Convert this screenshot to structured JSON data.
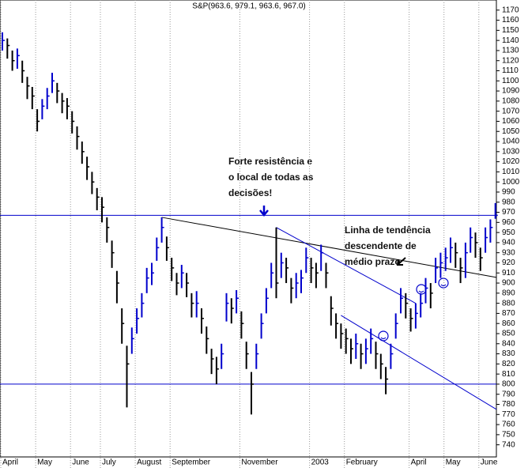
{
  "chart_data": {
    "type": "ohlc",
    "title": "S&P(963.6, 979.1, 963.6, 967.0)",
    "categories": [
      "April",
      null,
      null,
      null,
      null,
      null,
      null,
      "May",
      null,
      null,
      null,
      null,
      null,
      null,
      "June",
      null,
      null,
      null,
      null,
      null,
      "July",
      null,
      null,
      null,
      null,
      null,
      null,
      "August",
      null,
      null,
      null,
      null,
      null,
      null,
      "September",
      null,
      null,
      null,
      null,
      null,
      null,
      null,
      null,
      null,
      null,
      null,
      null,
      null,
      "November",
      null,
      null,
      null,
      null,
      null,
      null,
      null,
      null,
      null,
      null,
      null,
      null,
      null,
      "2003",
      null,
      null,
      null,
      null,
      null,
      null,
      "February",
      null,
      null,
      null,
      null,
      null,
      null,
      null,
      null,
      null,
      null,
      null,
      null,
      "April",
      null,
      null,
      null,
      null,
      null,
      null,
      "May",
      null,
      null,
      null,
      null,
      null,
      null,
      "June",
      null,
      null,
      null
    ],
    "high": [
      1148,
      1142,
      1130,
      1132,
      1120,
      1104,
      1094,
      1072,
      1082,
      1093,
      1108,
      1098,
      1088,
      1083,
      1070,
      1055,
      1040,
      1025,
      1010,
      994,
      985,
      965,
      942,
      912,
      875,
      838,
      856,
      875,
      890,
      915,
      920,
      945,
      965,
      946,
      925,
      910,
      918,
      910,
      890,
      892,
      875,
      857,
      835,
      827,
      840,
      890,
      885,
      893,
      872,
      842,
      812,
      840,
      870,
      895,
      920,
      955,
      930,
      925,
      905,
      910,
      913,
      935,
      925,
      920,
      938,
      920,
      887,
      870,
      860,
      855,
      845,
      850,
      840,
      845,
      855,
      842,
      830,
      817,
      840,
      870,
      895,
      890,
      875,
      880,
      890,
      905,
      900,
      925,
      930,
      935,
      945,
      940,
      925,
      940,
      955,
      950,
      935,
      955,
      963,
      979.1
    ],
    "low": [
      1130,
      1122,
      1110,
      1112,
      1098,
      1082,
      1072,
      1050,
      1062,
      1072,
      1088,
      1078,
      1068,
      1062,
      1048,
      1032,
      1018,
      1002,
      988,
      972,
      960,
      940,
      915,
      880,
      840,
      777,
      830,
      850,
      866,
      890,
      898,
      922,
      940,
      922,
      902,
      888,
      895,
      886,
      866,
      866,
      850,
      830,
      810,
      800,
      815,
      862,
      860,
      870,
      845,
      815,
      770,
      815,
      845,
      870,
      895,
      885,
      905,
      900,
      880,
      885,
      890,
      910,
      900,
      895,
      912,
      895,
      858,
      845,
      835,
      830,
      820,
      825,
      815,
      820,
      830,
      815,
      805,
      790,
      815,
      845,
      870,
      865,
      852,
      855,
      866,
      880,
      875,
      900,
      905,
      912,
      920,
      915,
      900,
      905,
      930,
      925,
      912,
      930,
      940,
      963.6
    ],
    "close": [
      1140,
      1135,
      1120,
      1125,
      1110,
      1095,
      1085,
      1060,
      1075,
      1085,
      1100,
      1090,
      1080,
      1075,
      1060,
      1045,
      1030,
      1015,
      1000,
      985,
      975,
      955,
      930,
      900,
      860,
      820,
      845,
      865,
      880,
      905,
      910,
      935,
      955,
      935,
      915,
      900,
      910,
      900,
      880,
      880,
      865,
      845,
      825,
      815,
      830,
      880,
      875,
      885,
      860,
      830,
      800,
      830,
      860,
      885,
      910,
      900,
      920,
      915,
      895,
      900,
      905,
      925,
      915,
      910,
      930,
      910,
      875,
      860,
      850,
      845,
      835,
      840,
      830,
      835,
      845,
      830,
      820,
      805,
      830,
      860,
      885,
      880,
      865,
      870,
      880,
      895,
      890,
      915,
      920,
      925,
      935,
      930,
      915,
      930,
      945,
      940,
      925,
      945,
      955,
      967.0
    ],
    "up_color": "#0000cc",
    "down_color": "#000000",
    "ylim": [
      728,
      1180
    ],
    "yticks": [
      740,
      750,
      760,
      770,
      780,
      790,
      800,
      810,
      820,
      830,
      840,
      850,
      860,
      870,
      880,
      890,
      900,
      910,
      920,
      930,
      940,
      950,
      960,
      970,
      980,
      990,
      1000,
      1010,
      1020,
      1030,
      1040,
      1050,
      1060,
      1070,
      1080,
      1090,
      1100,
      1110,
      1120,
      1130,
      1140,
      1150,
      1160,
      1170
    ],
    "hlines": [
      967,
      800
    ],
    "hline_color": "#0000cc",
    "trendlines": [
      {
        "color": "#000000",
        "from": [
          32,
          965
        ],
        "to": [
          105.6,
          900
        ]
      },
      {
        "color": "#0000cc",
        "from": [
          55,
          955
        ],
        "to": [
          83,
          880
        ]
      },
      {
        "color": "#0000cc",
        "from": [
          68,
          868
        ],
        "to": [
          105.6,
          756
        ]
      }
    ],
    "annotations": [
      [
        "Forte resistência e",
        "o local de todas as",
        "decisões!"
      ],
      [
        "Linha de tendência",
        "descendente de",
        "médio prazo"
      ]
    ]
  }
}
